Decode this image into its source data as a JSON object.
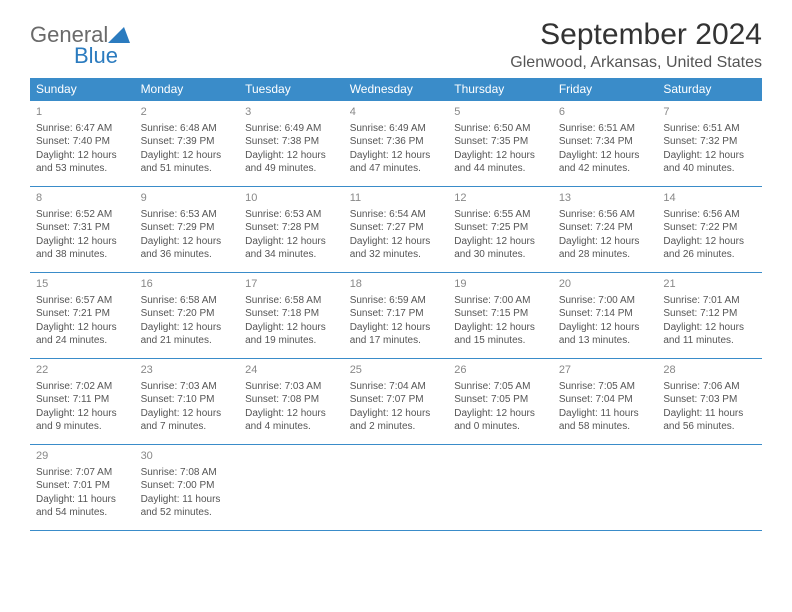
{
  "logo": {
    "text1": "General",
    "text2": "Blue"
  },
  "title": "September 2024",
  "location": "Glenwood, Arkansas, United States",
  "colors": {
    "header_bg": "#3a8cc9",
    "header_text": "#ffffff",
    "border": "#3a8cc9",
    "daynum": "#888888",
    "body_text": "#555555",
    "logo_gray": "#6a6a6a",
    "logo_blue": "#2b7bbf"
  },
  "weekdays": [
    "Sunday",
    "Monday",
    "Tuesday",
    "Wednesday",
    "Thursday",
    "Friday",
    "Saturday"
  ],
  "weeks": [
    [
      {
        "n": "1",
        "sr": "Sunrise: 6:47 AM",
        "ss": "Sunset: 7:40 PM",
        "dl": "Daylight: 12 hours and 53 minutes."
      },
      {
        "n": "2",
        "sr": "Sunrise: 6:48 AM",
        "ss": "Sunset: 7:39 PM",
        "dl": "Daylight: 12 hours and 51 minutes."
      },
      {
        "n": "3",
        "sr": "Sunrise: 6:49 AM",
        "ss": "Sunset: 7:38 PM",
        "dl": "Daylight: 12 hours and 49 minutes."
      },
      {
        "n": "4",
        "sr": "Sunrise: 6:49 AM",
        "ss": "Sunset: 7:36 PM",
        "dl": "Daylight: 12 hours and 47 minutes."
      },
      {
        "n": "5",
        "sr": "Sunrise: 6:50 AM",
        "ss": "Sunset: 7:35 PM",
        "dl": "Daylight: 12 hours and 44 minutes."
      },
      {
        "n": "6",
        "sr": "Sunrise: 6:51 AM",
        "ss": "Sunset: 7:34 PM",
        "dl": "Daylight: 12 hours and 42 minutes."
      },
      {
        "n": "7",
        "sr": "Sunrise: 6:51 AM",
        "ss": "Sunset: 7:32 PM",
        "dl": "Daylight: 12 hours and 40 minutes."
      }
    ],
    [
      {
        "n": "8",
        "sr": "Sunrise: 6:52 AM",
        "ss": "Sunset: 7:31 PM",
        "dl": "Daylight: 12 hours and 38 minutes."
      },
      {
        "n": "9",
        "sr": "Sunrise: 6:53 AM",
        "ss": "Sunset: 7:29 PM",
        "dl": "Daylight: 12 hours and 36 minutes."
      },
      {
        "n": "10",
        "sr": "Sunrise: 6:53 AM",
        "ss": "Sunset: 7:28 PM",
        "dl": "Daylight: 12 hours and 34 minutes."
      },
      {
        "n": "11",
        "sr": "Sunrise: 6:54 AM",
        "ss": "Sunset: 7:27 PM",
        "dl": "Daylight: 12 hours and 32 minutes."
      },
      {
        "n": "12",
        "sr": "Sunrise: 6:55 AM",
        "ss": "Sunset: 7:25 PM",
        "dl": "Daylight: 12 hours and 30 minutes."
      },
      {
        "n": "13",
        "sr": "Sunrise: 6:56 AM",
        "ss": "Sunset: 7:24 PM",
        "dl": "Daylight: 12 hours and 28 minutes."
      },
      {
        "n": "14",
        "sr": "Sunrise: 6:56 AM",
        "ss": "Sunset: 7:22 PM",
        "dl": "Daylight: 12 hours and 26 minutes."
      }
    ],
    [
      {
        "n": "15",
        "sr": "Sunrise: 6:57 AM",
        "ss": "Sunset: 7:21 PM",
        "dl": "Daylight: 12 hours and 24 minutes."
      },
      {
        "n": "16",
        "sr": "Sunrise: 6:58 AM",
        "ss": "Sunset: 7:20 PM",
        "dl": "Daylight: 12 hours and 21 minutes."
      },
      {
        "n": "17",
        "sr": "Sunrise: 6:58 AM",
        "ss": "Sunset: 7:18 PM",
        "dl": "Daylight: 12 hours and 19 minutes."
      },
      {
        "n": "18",
        "sr": "Sunrise: 6:59 AM",
        "ss": "Sunset: 7:17 PM",
        "dl": "Daylight: 12 hours and 17 minutes."
      },
      {
        "n": "19",
        "sr": "Sunrise: 7:00 AM",
        "ss": "Sunset: 7:15 PM",
        "dl": "Daylight: 12 hours and 15 minutes."
      },
      {
        "n": "20",
        "sr": "Sunrise: 7:00 AM",
        "ss": "Sunset: 7:14 PM",
        "dl": "Daylight: 12 hours and 13 minutes."
      },
      {
        "n": "21",
        "sr": "Sunrise: 7:01 AM",
        "ss": "Sunset: 7:12 PM",
        "dl": "Daylight: 12 hours and 11 minutes."
      }
    ],
    [
      {
        "n": "22",
        "sr": "Sunrise: 7:02 AM",
        "ss": "Sunset: 7:11 PM",
        "dl": "Daylight: 12 hours and 9 minutes."
      },
      {
        "n": "23",
        "sr": "Sunrise: 7:03 AM",
        "ss": "Sunset: 7:10 PM",
        "dl": "Daylight: 12 hours and 7 minutes."
      },
      {
        "n": "24",
        "sr": "Sunrise: 7:03 AM",
        "ss": "Sunset: 7:08 PM",
        "dl": "Daylight: 12 hours and 4 minutes."
      },
      {
        "n": "25",
        "sr": "Sunrise: 7:04 AM",
        "ss": "Sunset: 7:07 PM",
        "dl": "Daylight: 12 hours and 2 minutes."
      },
      {
        "n": "26",
        "sr": "Sunrise: 7:05 AM",
        "ss": "Sunset: 7:05 PM",
        "dl": "Daylight: 12 hours and 0 minutes."
      },
      {
        "n": "27",
        "sr": "Sunrise: 7:05 AM",
        "ss": "Sunset: 7:04 PM",
        "dl": "Daylight: 11 hours and 58 minutes."
      },
      {
        "n": "28",
        "sr": "Sunrise: 7:06 AM",
        "ss": "Sunset: 7:03 PM",
        "dl": "Daylight: 11 hours and 56 minutes."
      }
    ],
    [
      {
        "n": "29",
        "sr": "Sunrise: 7:07 AM",
        "ss": "Sunset: 7:01 PM",
        "dl": "Daylight: 11 hours and 54 minutes."
      },
      {
        "n": "30",
        "sr": "Sunrise: 7:08 AM",
        "ss": "Sunset: 7:00 PM",
        "dl": "Daylight: 11 hours and 52 minutes."
      },
      null,
      null,
      null,
      null,
      null
    ]
  ]
}
